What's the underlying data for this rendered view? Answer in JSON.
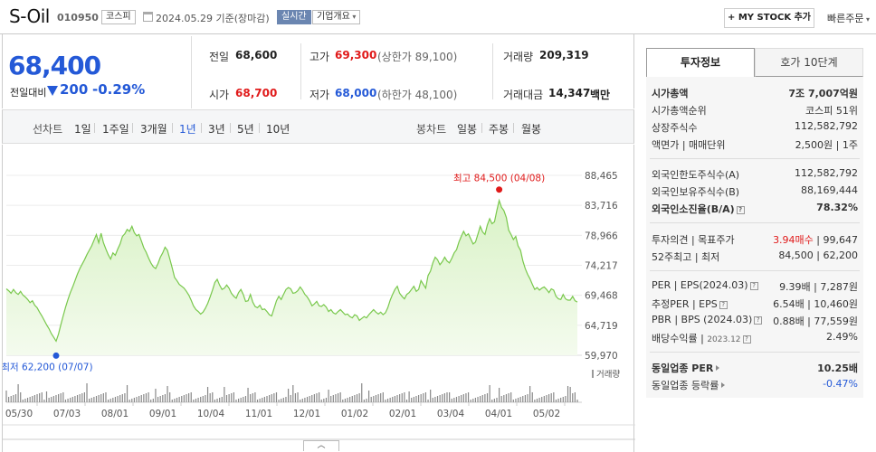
{
  "header": {
    "name": "S-Oil",
    "code": "010950",
    "market": "코스피",
    "date": "2024.05.29 기준(장마감)",
    "realtime": "실시간",
    "company_info": "기업개요",
    "mystock": "+ MY STOCK 추가",
    "quick_order": "빠른주문"
  },
  "price": {
    "now": "68,400",
    "diff_label": "전일대비",
    "diff": "200",
    "pct": "-0.29%"
  },
  "summary": {
    "prev_label": "전일",
    "prev": "68,600",
    "high_label": "고가",
    "high": "69,300",
    "upper": "(상한가 89,100)",
    "vol_label": "거래량",
    "vol": "209,319",
    "open_label": "시가",
    "open": "68,700",
    "low_label": "저가",
    "low": "68,000",
    "lower": "(하한가 48,100)",
    "amt_label": "거래대금",
    "amt": "14,347",
    "amt_unit": "백만"
  },
  "tabs": {
    "line_label": "선차트",
    "line": [
      "1일",
      "1주일",
      "3개월",
      "1년",
      "3년",
      "5년",
      "10년"
    ],
    "active": "1년",
    "candle_label": "봉차트",
    "candle": [
      "일봉",
      "주봉",
      "월봉"
    ]
  },
  "chart_data": {
    "type": "area",
    "title": "",
    "y_ticks": [
      "88,465",
      "83,716",
      "78,966",
      "74,217",
      "69,468",
      "64,719",
      "59,970"
    ],
    "ylim": [
      59970,
      88465
    ],
    "x_ticks": [
      "05/30",
      "07/03",
      "08/01",
      "09/01",
      "10/04",
      "11/01",
      "12/01",
      "01/02",
      "02/01",
      "03/04",
      "04/01",
      "05/02"
    ],
    "max_label": "최고 84,500 (04/08)",
    "min_label": "최저 62,200 (07/07)",
    "max": 84500,
    "min": 62200,
    "volume_label": "거래량",
    "series": [
      {
        "values": [
          70500,
          70200,
          69800,
          70400,
          69900,
          69600,
          70100,
          69500,
          69200,
          68800,
          68300,
          68600,
          67900,
          67500,
          66800,
          66200,
          65500,
          64800,
          64200,
          63400,
          62800,
          62200,
          63300,
          64800,
          66200,
          67600,
          68800,
          69900,
          70800,
          71800,
          72800,
          73700,
          74400,
          75100,
          75900,
          76600,
          77300,
          78200,
          79100,
          77800,
          79300,
          77800,
          76800,
          75900,
          75200,
          76200,
          75800,
          76800,
          77600,
          78800,
          79200,
          79900,
          79600,
          80400,
          79400,
          78900,
          79100,
          78100,
          77000,
          76300,
          75400,
          74600,
          74000,
          73700,
          74500,
          75500,
          76200,
          77100,
          76600,
          75200,
          73800,
          72300,
          71800,
          71200,
          70900,
          70600,
          70100,
          69500,
          68700,
          67800,
          67200,
          66900,
          66500,
          66800,
          67400,
          68200,
          69200,
          70300,
          71500,
          72000,
          71100,
          70400,
          70600,
          71100,
          70600,
          69800,
          69300,
          69000,
          69900,
          70400,
          69600,
          68500,
          68600,
          69600,
          68400,
          67700,
          67500,
          67900,
          67200,
          67300,
          66900,
          66400,
          66200,
          67400,
          68600,
          69300,
          68800,
          69600,
          70400,
          70700,
          70500,
          69800,
          69900,
          70200,
          70800,
          70300,
          69600,
          69200,
          68600,
          67800,
          68100,
          68500,
          67800,
          67700,
          68000,
          67600,
          66900,
          67200,
          66700,
          66500,
          66900,
          67200,
          66800,
          66400,
          66500,
          66100,
          65900,
          66400,
          66200,
          65500,
          65800,
          66100,
          65900,
          66400,
          66800,
          67200,
          66800,
          66500,
          66800,
          66400,
          66700,
          67500,
          68700,
          69600,
          70400,
          70900,
          69800,
          69300,
          68900,
          69600,
          69900,
          70400,
          70900,
          70100,
          70400,
          71800,
          71200,
          70600,
          72600,
          73300,
          74600,
          75500,
          75100,
          74300,
          74800,
          75500,
          74900,
          74600,
          75300,
          76200,
          76700,
          77900,
          78800,
          79600,
          78900,
          79200,
          78400,
          77600,
          77900,
          79100,
          80400,
          79500,
          79100,
          80600,
          81600,
          80800,
          81100,
          82900,
          84500,
          83400,
          82900,
          81800,
          79800,
          79100,
          78300,
          78800,
          77300,
          76600,
          74900,
          73700,
          72800,
          72100,
          71200,
          70400,
          70700,
          70300,
          70600,
          70800,
          70400,
          69900,
          70500,
          70300,
          69300,
          68900,
          68800,
          69600,
          68900,
          68700,
          68700,
          69300,
          68600,
          68400
        ]
      }
    ]
  },
  "right_panel": {
    "tab_on": "투자정보",
    "tab_off": "호가 10단계",
    "market_cap_label": "시가총액",
    "market_cap": "7조 7,007억원",
    "cap_rank_label": "시가총액순위",
    "cap_rank": "코스피 51위",
    "shares_label": "상장주식수",
    "shares": "112,582,792",
    "par_label": "액면가 | 매매단위",
    "par": "2,500원 | 1주",
    "foreign_limit_label": "외국인한도주식수(A)",
    "foreign_limit": "112,582,792",
    "foreign_hold_label": "외국인보유주식수(B)",
    "foreign_hold": "88,169,444",
    "foreign_ratio_label": "외국인소진율(B/A)",
    "foreign_ratio": "78.32%",
    "opinion_label": "투자의견 | 목표주가",
    "opinion": "3.94매수",
    "target": "99,647",
    "w52_label": "52주최고 | 최저",
    "w52": "84,500 | 62,200",
    "per_label": "PER | EPS(2024.03)",
    "per": "9.39배 | 7,287원",
    "est_per_label": "추정PER | EPS",
    "est_per": "6.54배 | 10,460원",
    "pbr_label": "PBR | BPS (2024.03)",
    "pbr": "0.88배 | 77,559원",
    "div_label": "배당수익률",
    "div_date": "2023.12",
    "div": "2.49%",
    "ind_per_label": "동일업종 PER",
    "ind_per": "10.25배",
    "ind_rate_label": "동일업종 등락률",
    "ind_rate": "-0.47%"
  },
  "colors": {
    "up": "#e01a1a",
    "down": "#2459d7",
    "line": "#79c84c",
    "fill": "#d9f2c6"
  }
}
